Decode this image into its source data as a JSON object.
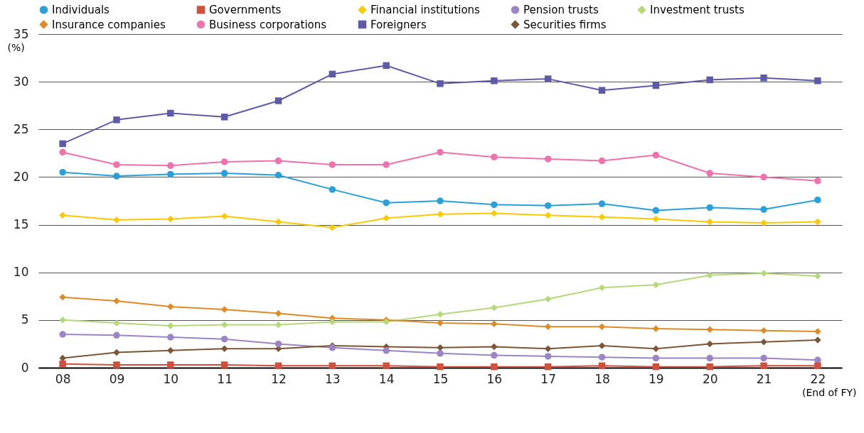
{
  "chart_data": {
    "type": "line",
    "xlabel": "(End of FY)",
    "ylabel": "(%)",
    "categories": [
      "08",
      "09",
      "10",
      "11",
      "12",
      "13",
      "14",
      "15",
      "16",
      "17",
      "18",
      "19",
      "20",
      "21",
      "22"
    ],
    "ylim": [
      0,
      35
    ],
    "yticks": [
      0,
      5,
      10,
      15,
      20,
      25,
      30,
      35
    ],
    "grid": "y",
    "legend": "top",
    "line_style": "solid",
    "series": [
      {
        "name": "Individuals",
        "color": "#29a0da",
        "marker": "circle",
        "values": [
          20.5,
          20.1,
          20.3,
          20.4,
          20.2,
          18.7,
          17.3,
          17.5,
          17.1,
          17.0,
          17.2,
          16.5,
          16.8,
          16.6,
          17.6
        ]
      },
      {
        "name": "Governments",
        "color": "#cf513d",
        "marker": "square",
        "values": [
          0.4,
          0.3,
          0.3,
          0.3,
          0.2,
          0.2,
          0.2,
          0.1,
          0.1,
          0.1,
          0.2,
          0.1,
          0.1,
          0.2,
          0.2
        ]
      },
      {
        "name": "Financial institutions",
        "color": "#fcc800",
        "marker": "diamond",
        "values": [
          16.0,
          15.5,
          15.6,
          15.9,
          15.3,
          14.7,
          15.7,
          16.1,
          16.2,
          16.0,
          15.8,
          15.6,
          15.3,
          15.2,
          15.3
        ]
      },
      {
        "name": "Pension trusts",
        "color": "#9b85c4",
        "marker": "circle",
        "values": [
          3.5,
          3.4,
          3.2,
          3.0,
          2.5,
          2.1,
          1.8,
          1.5,
          1.3,
          1.2,
          1.1,
          1.0,
          1.0,
          1.0,
          0.8
        ]
      },
      {
        "name": "Investment trusts",
        "color": "#b5d97a",
        "marker": "diamond",
        "values": [
          5.0,
          4.7,
          4.4,
          4.5,
          4.5,
          4.8,
          4.8,
          5.6,
          6.3,
          7.2,
          8.4,
          8.7,
          9.7,
          9.9,
          9.6
        ]
      },
      {
        "name": "Insurance companies",
        "color": "#dd8a2a",
        "marker": "diamond",
        "values": [
          7.4,
          7.0,
          6.4,
          6.1,
          5.7,
          5.2,
          5.0,
          4.7,
          4.6,
          4.3,
          4.3,
          4.1,
          4.0,
          3.9,
          3.8
        ]
      },
      {
        "name": "Business corporations",
        "color": "#ee72ab",
        "marker": "circle",
        "values": [
          22.6,
          21.3,
          21.2,
          21.6,
          21.7,
          21.3,
          21.3,
          22.6,
          22.1,
          21.9,
          21.7,
          22.3,
          20.4,
          20.0,
          19.6
        ]
      },
      {
        "name": "Foreigners",
        "color": "#5f5aa8",
        "marker": "square",
        "values": [
          23.5,
          26.0,
          26.7,
          26.3,
          28.0,
          30.8,
          31.7,
          29.8,
          30.1,
          30.3,
          29.1,
          29.6,
          30.2,
          30.4,
          30.1
        ]
      },
      {
        "name": "Securities firms",
        "color": "#7b5637",
        "marker": "diamond",
        "values": [
          1.0,
          1.6,
          1.8,
          2.0,
          2.0,
          2.3,
          2.2,
          2.1,
          2.2,
          2.0,
          2.3,
          2.0,
          2.5,
          2.7,
          2.9
        ]
      }
    ]
  }
}
